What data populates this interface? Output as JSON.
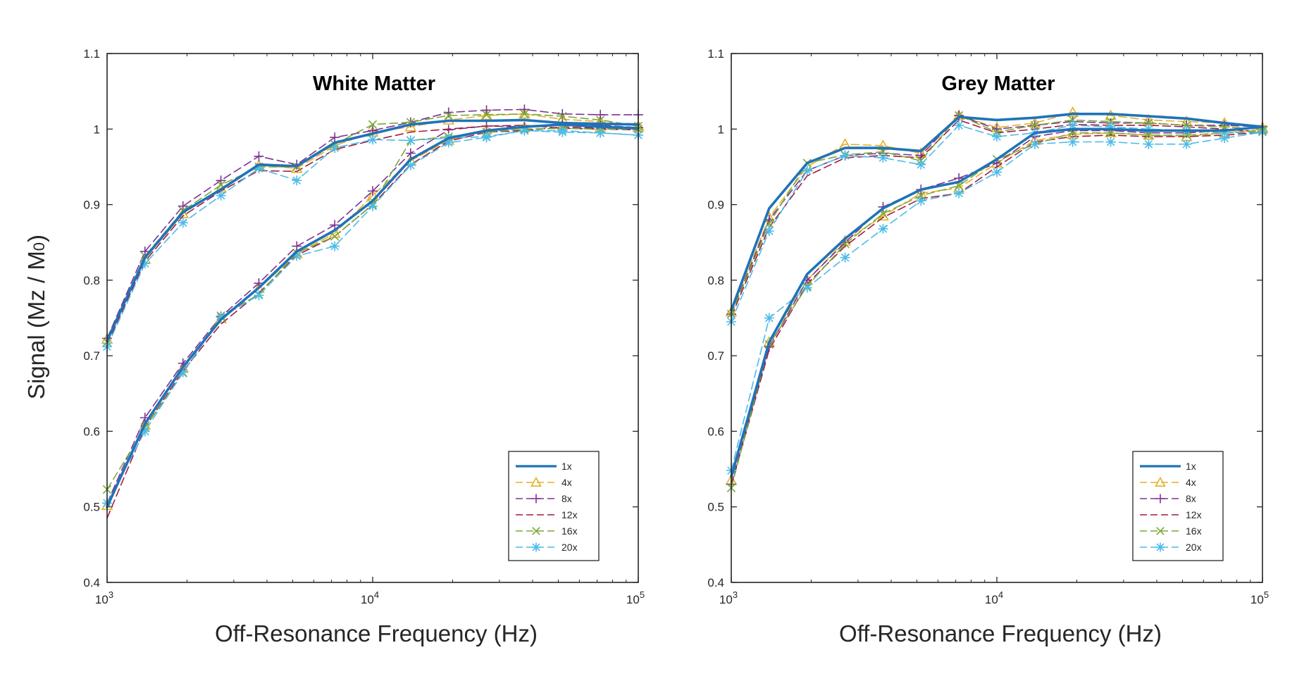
{
  "figure": {
    "ylabel": "Signal (Mz / M0)",
    "ylabel_parts": {
      "prefix": "Signal (Mz / M",
      "subscript": "0",
      "suffix": ")"
    }
  },
  "chart_data": [
    {
      "type": "line",
      "title": "White Matter",
      "xlabel": "Off-Resonance Frequency (Hz)",
      "ylabel": "Signal (Mz / M0)",
      "xscale": "log",
      "xlim": [
        1000,
        100000
      ],
      "ylim": [
        0.4,
        1.1
      ],
      "xticks": [
        {
          "value": 1000,
          "base": "10",
          "exp": "3"
        },
        {
          "value": 10000,
          "base": "10",
          "exp": "4"
        },
        {
          "value": 100000,
          "base": "10",
          "exp": "5"
        }
      ],
      "yticks": [
        "0.4",
        "0.5",
        "0.6",
        "0.7",
        "0.8",
        "0.9",
        "1",
        "1.1"
      ],
      "legend_position": "bottom-right",
      "x": [
        1000,
        1389,
        1931,
        2683,
        3728,
        5179,
        7197,
        10000,
        13895,
        19307,
        26827,
        37276,
        51795,
        71969,
        100000
      ],
      "series": [
        {
          "name": "1x",
          "group": "upper",
          "style": "solid",
          "marker": "none",
          "color": "#1f73b8",
          "values": [
            0.72,
            0.83,
            0.89,
            0.92,
            0.953,
            0.951,
            0.982,
            0.994,
            1.006,
            1.011,
            1.011,
            1.012,
            1.008,
            1.007,
            1.006
          ]
        },
        {
          "name": "1x",
          "group": "lower",
          "style": "solid",
          "marker": "none",
          "color": "#1f73b8",
          "values": [
            0.5,
            0.61,
            0.685,
            0.748,
            0.79,
            0.838,
            0.866,
            0.905,
            0.96,
            0.988,
            0.998,
            1.003,
            1.006,
            1.003,
            1.001
          ]
        },
        {
          "name": "4x",
          "group": "upper",
          "style": "dashed",
          "marker": "triangle",
          "color": "#e3b12a",
          "values": [
            0.722,
            0.828,
            0.888,
            0.922,
            0.952,
            0.948,
            0.978,
            0.996,
            1.003,
            1.012,
            1.018,
            1.02,
            1.013,
            1.01,
            1.004
          ]
        },
        {
          "name": "4x",
          "group": "lower",
          "style": "dashed",
          "marker": "triangle",
          "color": "#e3b12a",
          "values": [
            0.502,
            0.608,
            0.684,
            0.749,
            0.789,
            0.835,
            0.862,
            0.912,
            0.958,
            0.985,
            0.999,
            1.002,
            1.005,
            1.002,
            1.002
          ]
        },
        {
          "name": "8x",
          "group": "upper",
          "style": "dashed",
          "marker": "plus",
          "color": "#7d3393",
          "values": [
            0.723,
            0.838,
            0.898,
            0.932,
            0.964,
            0.953,
            0.989,
            0.998,
            1.009,
            1.022,
            1.025,
            1.026,
            1.02,
            1.019,
            1.019
          ]
        },
        {
          "name": "8x",
          "group": "lower",
          "style": "dashed",
          "marker": "plus",
          "color": "#7d3393",
          "values": [
            0.505,
            0.618,
            0.69,
            0.752,
            0.796,
            0.845,
            0.873,
            0.918,
            0.968,
            0.999,
            1.004,
            1.003,
            1.006,
            1.005,
            1.002
          ]
        },
        {
          "name": "12x",
          "group": "upper",
          "style": "dashed",
          "marker": "none",
          "color": "#a31d3d",
          "values": [
            0.715,
            0.825,
            0.885,
            0.918,
            0.945,
            0.944,
            0.973,
            0.985,
            0.996,
            1.0,
            1.004,
            1.005,
            1.001,
            1.0,
            0.999
          ]
        },
        {
          "name": "12x",
          "group": "lower",
          "style": "dashed",
          "marker": "none",
          "color": "#a31d3d",
          "values": [
            0.485,
            0.605,
            0.68,
            0.742,
            0.783,
            0.833,
            0.858,
            0.9,
            0.953,
            0.984,
            0.996,
            0.998,
            1.003,
            1.001,
            1.0
          ]
        },
        {
          "name": "16x",
          "group": "upper",
          "style": "dashed",
          "marker": "x",
          "color": "#78aa38",
          "values": [
            0.718,
            0.832,
            0.892,
            0.926,
            0.95,
            0.95,
            0.98,
            1.006,
            1.009,
            1.018,
            1.019,
            1.02,
            1.017,
            1.012,
            1.004
          ]
        },
        {
          "name": "16x",
          "group": "lower",
          "style": "dashed",
          "marker": "x",
          "color": "#78aa38",
          "values": [
            0.523,
            0.605,
            0.677,
            0.753,
            0.781,
            0.836,
            0.858,
            0.9,
            0.985,
            0.99,
            0.996,
            1.0,
            1.001,
            1.0,
            1.0
          ]
        },
        {
          "name": "20x",
          "group": "upper",
          "style": "dashed",
          "marker": "asterisk",
          "color": "#4cbbe9",
          "values": [
            0.712,
            0.822,
            0.876,
            0.912,
            0.948,
            0.932,
            0.975,
            0.986,
            0.985,
            0.988,
            0.99,
            0.998,
            0.996,
            0.995,
            0.992
          ]
        },
        {
          "name": "20x",
          "group": "lower",
          "style": "dashed",
          "marker": "asterisk",
          "color": "#4cbbe9",
          "values": [
            0.505,
            0.6,
            0.678,
            0.751,
            0.78,
            0.832,
            0.845,
            0.898,
            0.952,
            0.982,
            0.989,
            0.998,
            0.998,
            0.995,
            0.992
          ]
        }
      ]
    },
    {
      "type": "line",
      "title": "Grey Matter",
      "xlabel": "Off-Resonance Frequency (Hz)",
      "ylabel": "Signal (Mz / M0)",
      "xscale": "log",
      "xlim": [
        1000,
        100000
      ],
      "ylim": [
        0.4,
        1.1
      ],
      "xticks": [
        {
          "value": 1000,
          "base": "10",
          "exp": "3"
        },
        {
          "value": 10000,
          "base": "10",
          "exp": "4"
        },
        {
          "value": 100000,
          "base": "10",
          "exp": "5"
        }
      ],
      "yticks": [
        "0.4",
        "0.5",
        "0.6",
        "0.7",
        "0.8",
        "0.9",
        "1",
        "1.1"
      ],
      "legend_position": "bottom-right",
      "x": [
        1000,
        1389,
        1931,
        2683,
        3728,
        5179,
        7197,
        10000,
        13895,
        19307,
        26827,
        37276,
        51795,
        71969,
        100000
      ],
      "series": [
        {
          "name": "1x",
          "group": "upper",
          "style": "solid",
          "marker": "none",
          "color": "#1f73b8",
          "values": [
            0.76,
            0.895,
            0.955,
            0.975,
            0.975,
            0.971,
            1.016,
            1.012,
            1.015,
            1.02,
            1.02,
            1.017,
            1.014,
            1.008,
            1.003
          ]
        },
        {
          "name": "1x",
          "group": "lower",
          "style": "solid",
          "marker": "none",
          "color": "#1f73b8",
          "values": [
            0.54,
            0.718,
            0.808,
            0.855,
            0.895,
            0.92,
            0.93,
            0.96,
            0.995,
            1.0,
            1.0,
            0.998,
            0.998,
            0.998,
            1.003
          ]
        },
        {
          "name": "4x",
          "group": "upper",
          "style": "dashed",
          "marker": "triangle",
          "color": "#e3b12a",
          "values": [
            0.758,
            0.883,
            0.95,
            0.98,
            0.978,
            0.968,
            1.018,
            1.002,
            1.008,
            1.022,
            1.018,
            1.012,
            1.01,
            1.008,
            1.002
          ]
        },
        {
          "name": "4x",
          "group": "lower",
          "style": "dashed",
          "marker": "triangle",
          "color": "#e3b12a",
          "values": [
            0.535,
            0.718,
            0.8,
            0.852,
            0.885,
            0.915,
            0.922,
            0.955,
            0.985,
            0.993,
            0.995,
            0.992,
            0.99,
            0.995,
            1.0
          ]
        },
        {
          "name": "8x",
          "group": "upper",
          "style": "dashed",
          "marker": "plus",
          "color": "#7d3393",
          "values": [
            0.755,
            0.88,
            0.945,
            0.965,
            0.968,
            0.965,
            1.018,
            1.0,
            1.005,
            1.01,
            1.008,
            1.008,
            1.005,
            1.005,
            1.003
          ]
        },
        {
          "name": "8x",
          "group": "lower",
          "style": "dashed",
          "marker": "plus",
          "color": "#7d3393",
          "values": [
            0.53,
            0.712,
            0.8,
            0.85,
            0.897,
            0.92,
            0.935,
            0.955,
            0.99,
            0.998,
            0.998,
            0.995,
            0.995,
            0.998,
            1.003
          ]
        },
        {
          "name": "12x",
          "group": "upper",
          "style": "dashed",
          "marker": "none",
          "color": "#a31d3d",
          "values": [
            0.752,
            0.87,
            0.938,
            0.962,
            0.965,
            0.962,
            1.012,
            0.995,
            1.0,
            1.006,
            1.005,
            1.005,
            1.003,
            1.0,
            0.996
          ]
        },
        {
          "name": "12x",
          "group": "lower",
          "style": "dashed",
          "marker": "none",
          "color": "#a31d3d",
          "values": [
            0.528,
            0.708,
            0.795,
            0.845,
            0.883,
            0.908,
            0.915,
            0.95,
            0.983,
            0.99,
            0.992,
            0.99,
            0.99,
            0.992,
            0.996
          ]
        },
        {
          "name": "16x",
          "group": "upper",
          "style": "dashed",
          "marker": "x",
          "color": "#78aa38",
          "values": [
            0.755,
            0.875,
            0.955,
            0.966,
            0.97,
            0.958,
            1.018,
            0.996,
            1.005,
            1.012,
            1.01,
            1.008,
            1.005,
            1.003,
            1.0
          ]
        },
        {
          "name": "16x",
          "group": "lower",
          "style": "dashed",
          "marker": "x",
          "color": "#78aa38",
          "values": [
            0.525,
            0.715,
            0.792,
            0.848,
            0.888,
            0.912,
            0.925,
            0.96,
            0.98,
            0.995,
            0.995,
            0.992,
            0.992,
            0.995,
            0.998
          ]
        },
        {
          "name": "20x",
          "group": "upper",
          "style": "dashed",
          "marker": "asterisk",
          "color": "#4cbbe9",
          "values": [
            0.745,
            0.865,
            0.945,
            0.965,
            0.962,
            0.953,
            1.005,
            0.99,
            0.995,
            1.005,
            1.003,
            1.0,
            0.998,
            0.995,
            0.996
          ]
        },
        {
          "name": "20x",
          "group": "lower",
          "style": "dashed",
          "marker": "asterisk",
          "color": "#4cbbe9",
          "values": [
            0.548,
            0.75,
            0.79,
            0.83,
            0.868,
            0.905,
            0.915,
            0.943,
            0.98,
            0.983,
            0.983,
            0.98,
            0.98,
            0.988,
            0.996
          ]
        }
      ]
    }
  ]
}
